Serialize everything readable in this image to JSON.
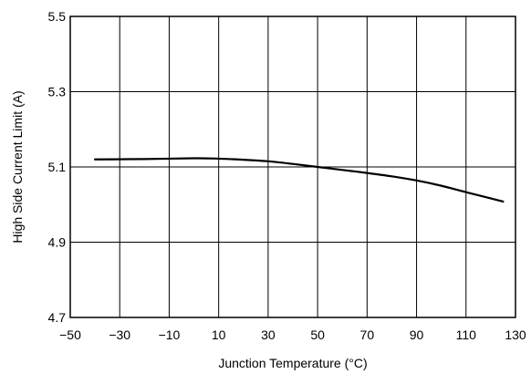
{
  "chart_data": {
    "type": "line",
    "xlabel": "Junction Temperature (°C)",
    "ylabel": "High Side Current Limit (A)",
    "xlim": [
      -50,
      130
    ],
    "ylim": [
      4.7,
      5.5
    ],
    "x_ticks": [
      -50,
      -30,
      -10,
      10,
      30,
      50,
      70,
      90,
      110,
      130
    ],
    "x_tick_labels": [
      "−50",
      "−30",
      "−10",
      "10",
      "30",
      "50",
      "70",
      "90",
      "110",
      "130"
    ],
    "y_ticks": [
      4.7,
      4.9,
      5.1,
      5.3,
      5.5
    ],
    "y_tick_labels": [
      "4.7",
      "4.9",
      "5.1",
      "5.3",
      "5.5"
    ],
    "x_grid_lines": [
      -30,
      -10,
      10,
      30,
      50,
      70,
      90,
      110
    ],
    "y_grid_lines": [
      4.9,
      5.1,
      5.3
    ],
    "grid": true,
    "series": [
      {
        "x": [
          -40,
          -20,
          0,
          10,
          20,
          30,
          40,
          50,
          60,
          70,
          80,
          90,
          100,
          110,
          125
        ],
        "y": [
          5.12,
          5.121,
          5.123,
          5.122,
          5.119,
          5.115,
          5.108,
          5.1,
          5.092,
          5.084,
          5.075,
          5.064,
          5.05,
          5.033,
          5.008
        ],
        "color": "#000000"
      }
    ]
  }
}
